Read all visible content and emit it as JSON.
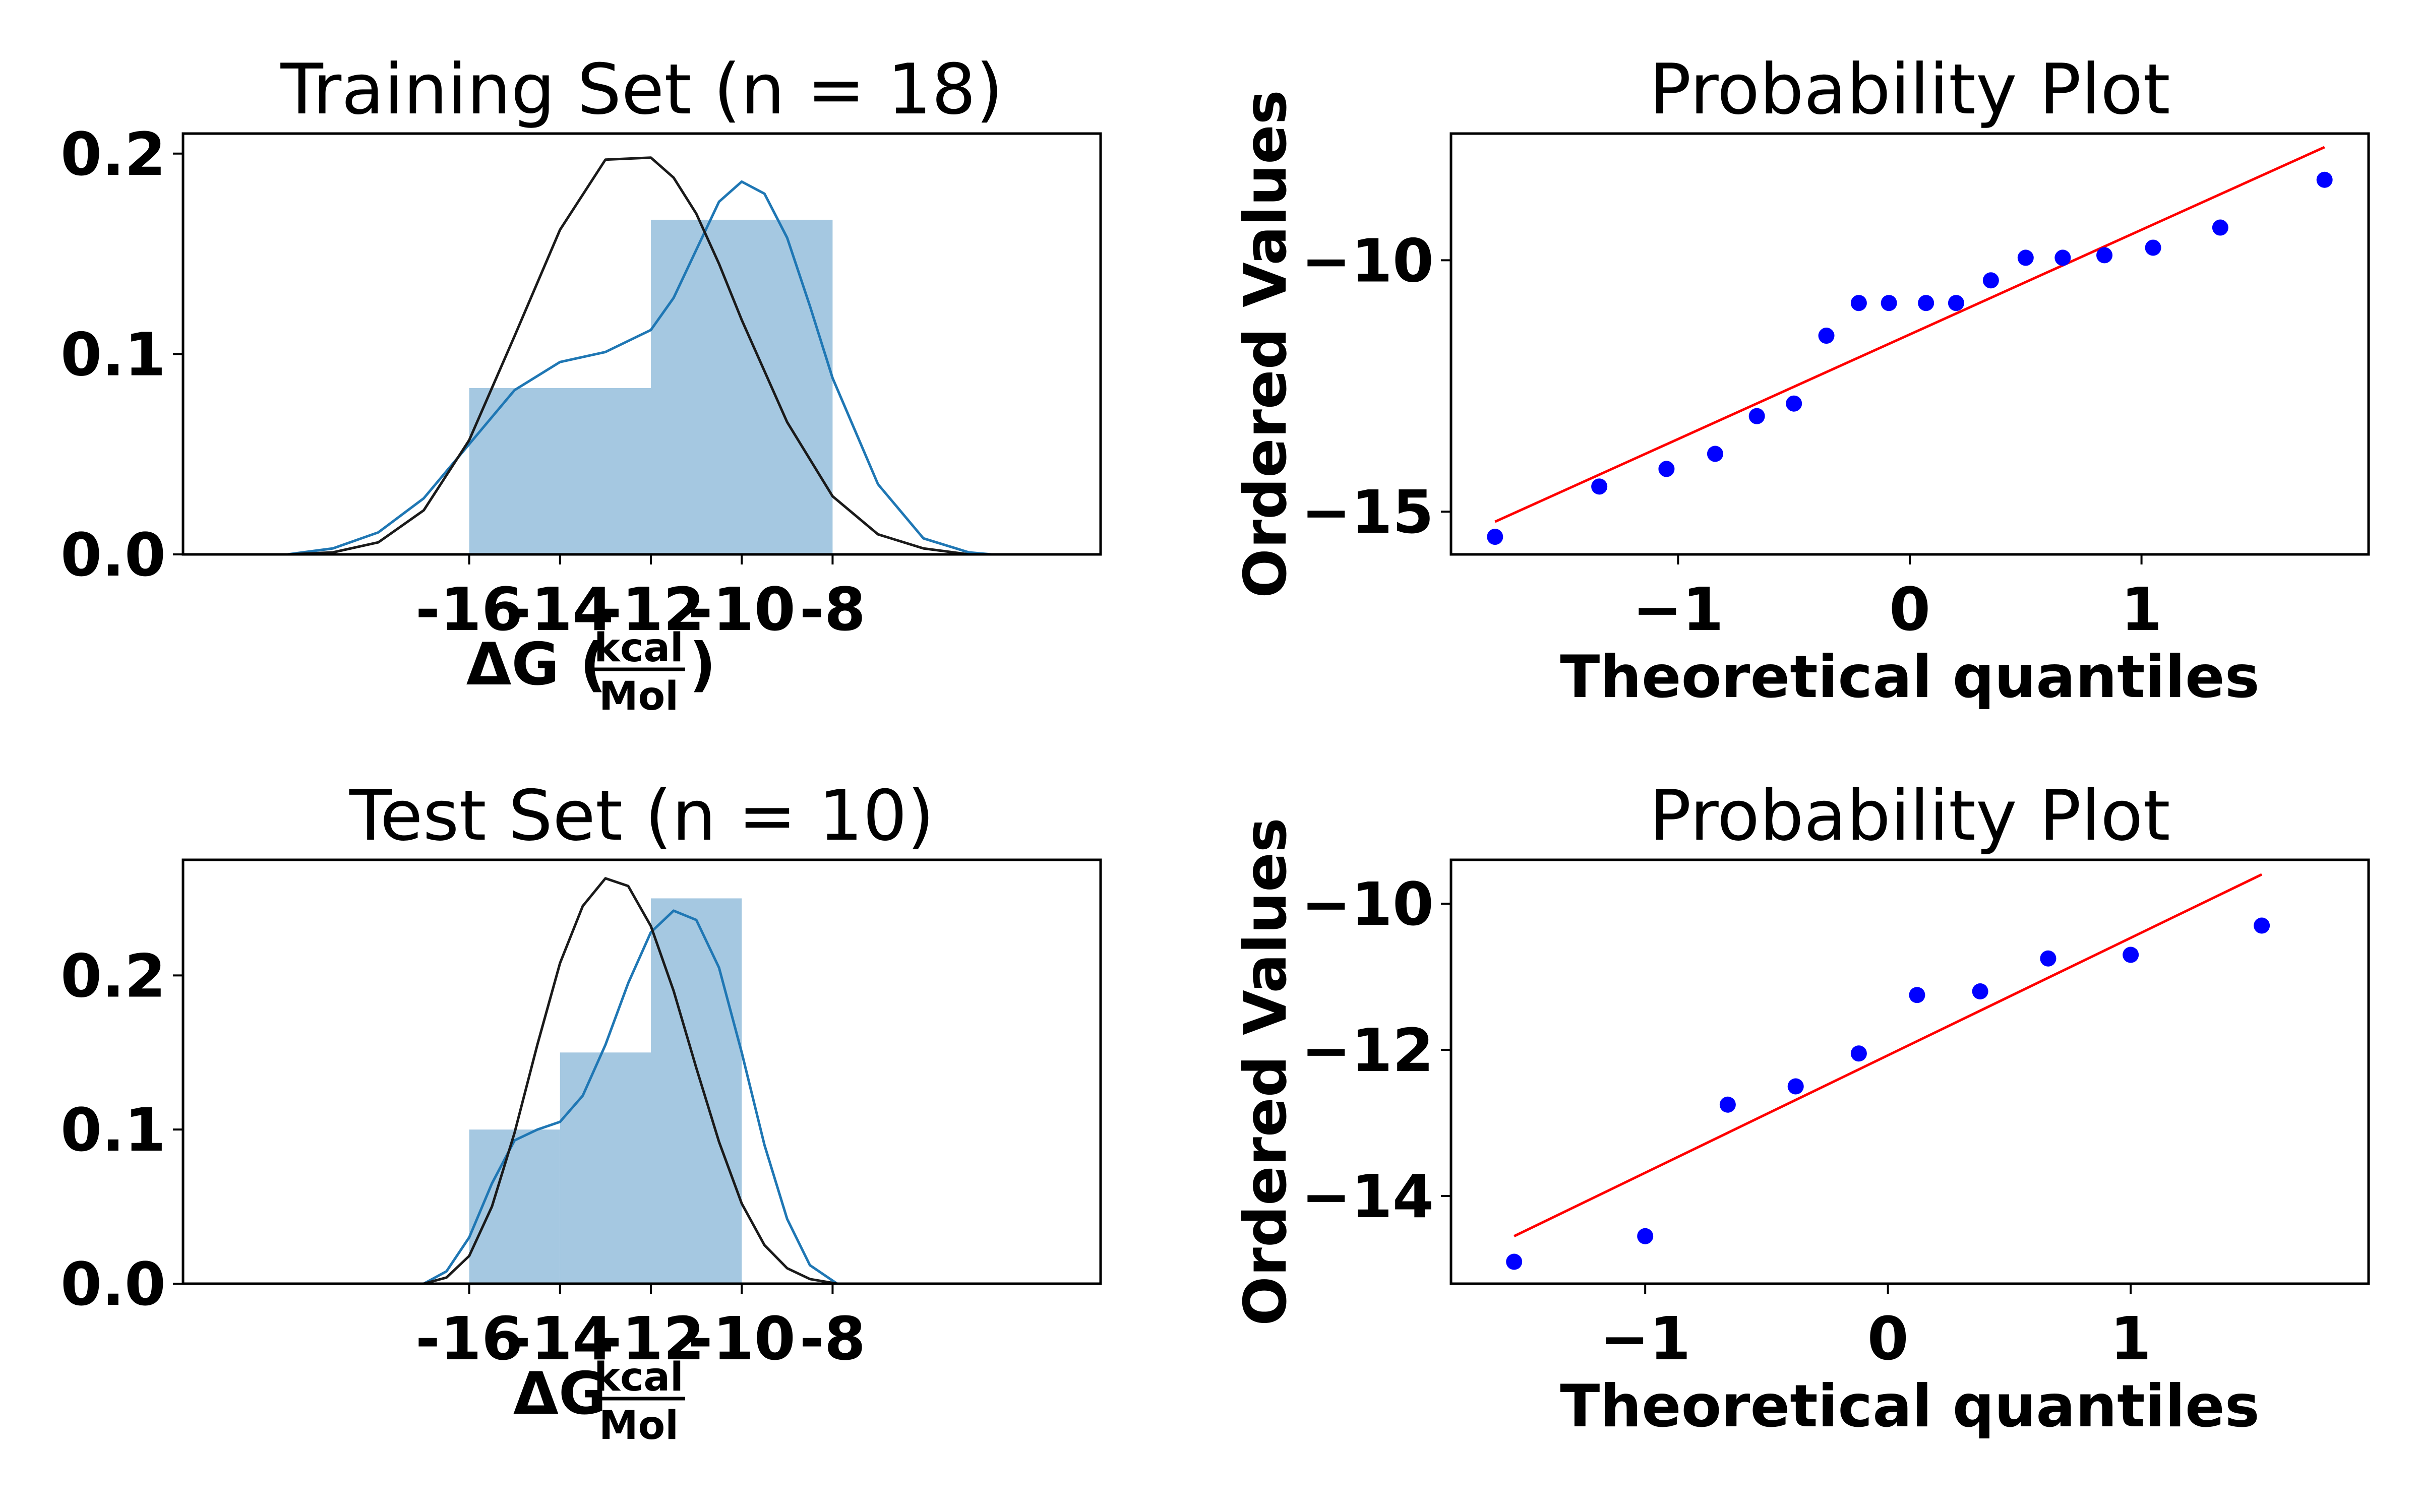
{
  "chart_data": [
    {
      "type": "bar",
      "title": "Training Set (n = 18)",
      "xlabel": "ΔG",
      "xlabel_fraction": {
        "numerator": "kcal",
        "denominator": "Mol",
        "parenthesized": true
      },
      "ylabel": "",
      "xlim": [
        -22.3,
        -2.1
      ],
      "ylim": [
        0,
        0.21
      ],
      "xticks": [
        -16,
        -14,
        -12,
        -10,
        -8
      ],
      "xtick_labels": [
        "-16",
        "-14",
        "-12",
        "-10",
        "-8"
      ],
      "yticks": [
        0.0,
        0.1,
        0.2
      ],
      "ytick_labels": [
        "0.0",
        "0.1",
        "0.2"
      ],
      "bins": [
        {
          "x0": -16,
          "x1": -12,
          "height": 0.083
        },
        {
          "x0": -12,
          "x1": -8,
          "height": 0.167
        }
      ],
      "bar_color": "#a5c8e1",
      "series": [
        {
          "name": "",
          "type": "line",
          "color": "#1f77b4",
          "x": [
            -20.0,
            -19,
            -18,
            -17,
            -16,
            -15,
            -14,
            -13,
            -12,
            -11.5,
            -11,
            -10.5,
            -10,
            -9.5,
            -9,
            -8.5,
            -8,
            -7,
            -6,
            -5,
            -4.5
          ],
          "y": [
            0.0,
            0.003,
            0.011,
            0.028,
            0.055,
            0.082,
            0.096,
            0.101,
            0.112,
            0.128,
            0.152,
            0.176,
            0.186,
            0.18,
            0.158,
            0.124,
            0.088,
            0.035,
            0.008,
            0.001,
            0.0
          ]
        },
        {
          "name": "",
          "type": "line",
          "color": "#1a1a1a",
          "x": [
            -20.0,
            -19,
            -18,
            -17,
            -16,
            -15,
            -14,
            -13,
            -12,
            -11.5,
            -11,
            -10.5,
            -10,
            -9,
            -8,
            -7,
            -6,
            -5,
            -4.5
          ],
          "y": [
            0.0,
            0.001,
            0.006,
            0.022,
            0.057,
            0.109,
            0.162,
            0.197,
            0.198,
            0.188,
            0.17,
            0.145,
            0.117,
            0.066,
            0.029,
            0.01,
            0.003,
            0.0,
            0.0
          ]
        }
      ]
    },
    {
      "type": "scatter",
      "title": "Probability Plot",
      "xlabel": "Theoretical quantiles",
      "ylabel": "Ordered Values",
      "xlim": [
        -1.98,
        1.98
      ],
      "ylim": [
        -15.85,
        -7.48
      ],
      "xticks": [
        -1,
        0,
        1
      ],
      "xtick_labels": [
        "−1",
        "0",
        "1"
      ],
      "yticks": [
        -15,
        -10
      ],
      "ytick_labels": [
        "−15",
        "−10"
      ],
      "points": {
        "color": "#0000ff",
        "x": [
          -1.79,
          -1.34,
          -1.05,
          -0.84,
          -0.66,
          -0.5,
          -0.36,
          -0.22,
          -0.09,
          0.07,
          0.2,
          0.35,
          0.5,
          0.66,
          0.84,
          1.05,
          1.34,
          1.79
        ],
        "y": [
          -15.5,
          -14.5,
          -14.15,
          -13.85,
          -13.1,
          -12.85,
          -11.5,
          -10.85,
          -10.85,
          -10.85,
          -10.85,
          -10.4,
          -9.95,
          -9.95,
          -9.9,
          -9.75,
          -9.35,
          -8.4
        ]
      },
      "fit_line": {
        "color": "#ff0000",
        "x": [
          -1.79,
          1.79
        ],
        "y": [
          -15.2,
          -7.75
        ]
      }
    },
    {
      "type": "bar",
      "title": "Test Set (n = 10)",
      "xlabel": "ΔG",
      "xlabel_fraction": {
        "numerator": "kcal",
        "denominator": "Mol",
        "parenthesized": false
      },
      "ylabel": "",
      "xlim": [
        -22.3,
        -2.1
      ],
      "ylim": [
        0,
        0.275
      ],
      "xticks": [
        -16,
        -14,
        -12,
        -10,
        -8
      ],
      "xtick_labels": [
        "-16",
        "-14",
        "-12",
        "-10",
        "-8"
      ],
      "yticks": [
        0.0,
        0.1,
        0.2
      ],
      "ytick_labels": [
        "0.0",
        "0.1",
        "0.2"
      ],
      "bins": [
        {
          "x0": -16,
          "x1": -14,
          "height": 0.1
        },
        {
          "x0": -14,
          "x1": -12,
          "height": 0.15
        },
        {
          "x0": -12,
          "x1": -10,
          "height": 0.25
        }
      ],
      "bar_color": "#a5c8e1",
      "series": [
        {
          "name": "",
          "type": "line",
          "color": "#1f77b4",
          "x": [
            -17.0,
            -16.5,
            -16,
            -15.5,
            -15,
            -14.5,
            -14,
            -13.5,
            -13,
            -12.5,
            -12,
            -11.5,
            -11,
            -10.5,
            -10,
            -9.5,
            -9,
            -8.5,
            -7.9
          ],
          "y": [
            0.0,
            0.008,
            0.03,
            0.065,
            0.093,
            0.1,
            0.105,
            0.122,
            0.155,
            0.195,
            0.228,
            0.242,
            0.236,
            0.205,
            0.15,
            0.09,
            0.042,
            0.012,
            0.0
          ]
        },
        {
          "name": "",
          "type": "line",
          "color": "#1a1a1a",
          "x": [
            -17.0,
            -16.5,
            -16,
            -15.5,
            -15,
            -14.5,
            -14,
            -13.5,
            -13,
            -12.5,
            -12,
            -11.5,
            -11,
            -10.5,
            -10,
            -9.5,
            -9,
            -8.5,
            -7.9
          ],
          "y": [
            0.0,
            0.004,
            0.018,
            0.05,
            0.098,
            0.155,
            0.208,
            0.245,
            0.263,
            0.258,
            0.232,
            0.19,
            0.14,
            0.092,
            0.052,
            0.025,
            0.01,
            0.003,
            0.0
          ]
        }
      ]
    },
    {
      "type": "scatter",
      "title": "Probability Plot",
      "xlabel": "Theoretical quantiles",
      "ylabel": "Ordered Values",
      "xlim": [
        -1.8,
        1.98
      ],
      "ylim": [
        -15.2,
        -9.4
      ],
      "xticks": [
        -1,
        0,
        1
      ],
      "xtick_labels": [
        "−1",
        "0",
        "1"
      ],
      "yticks": [
        -14,
        -12,
        -10
      ],
      "ytick_labels": [
        "−14",
        "−12",
        "−10"
      ],
      "points": {
        "color": "#0000ff",
        "x": [
          -1.54,
          -1.0,
          -0.66,
          -0.38,
          -0.12,
          0.12,
          0.38,
          0.66,
          1.0,
          1.54
        ],
        "y": [
          -14.9,
          -14.55,
          -12.75,
          -12.5,
          -12.05,
          -11.25,
          -11.2,
          -10.75,
          -10.7,
          -10.3
        ]
      },
      "fit_line": {
        "color": "#ff0000",
        "x": [
          -1.54,
          1.54
        ],
        "y": [
          -14.55,
          -9.6
        ]
      }
    }
  ]
}
